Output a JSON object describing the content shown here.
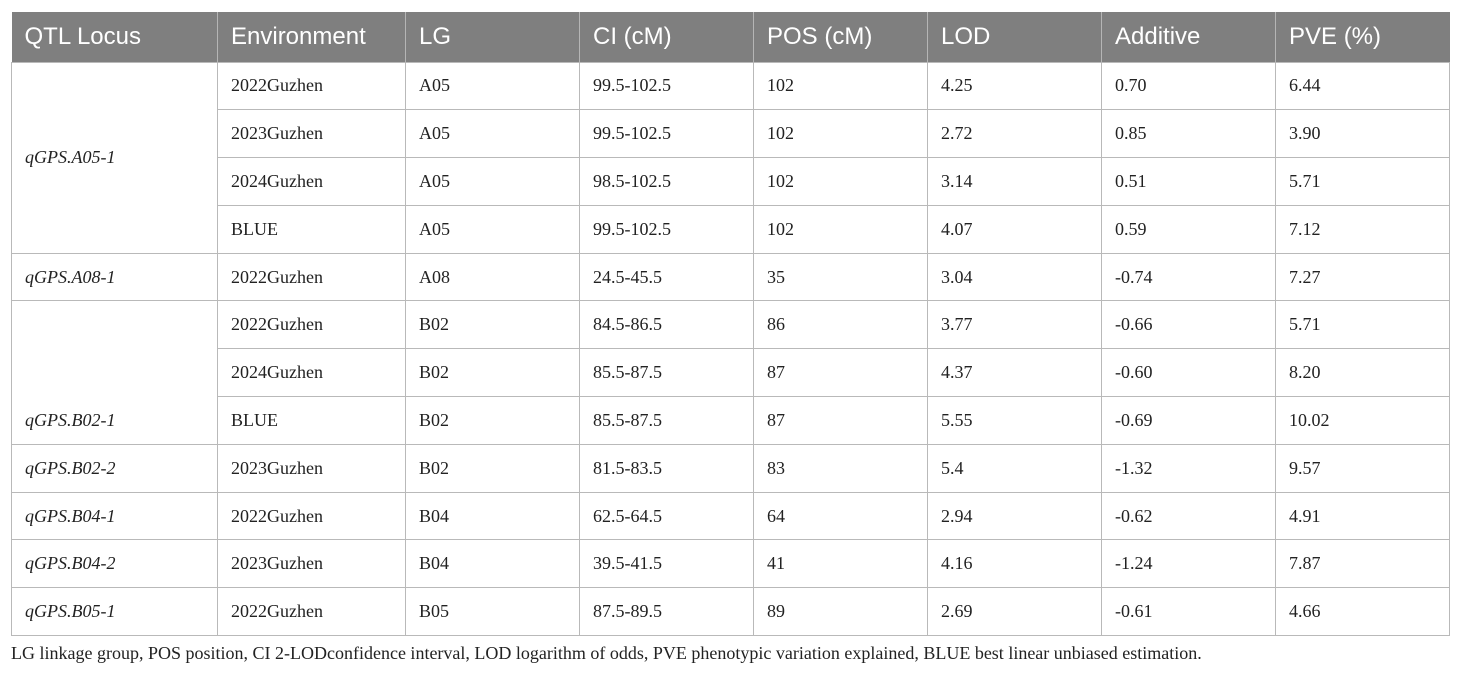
{
  "headers": [
    "QTL Locus",
    "Environment",
    "LG",
    "CI (cM)",
    "POS (cM)",
    "LOD",
    "Additive",
    "PVE (%)"
  ],
  "rows": [
    {
      "locus": "qGPS.A05-1",
      "env": "2022Guzhen",
      "lg": "A05",
      "ci": "99.5-102.5",
      "pos": "102",
      "lod": "4.25",
      "add": "0.70",
      "pve": "6.44"
    },
    {
      "env": "2023Guzhen",
      "lg": "A05",
      "ci": "99.5-102.5",
      "pos": "102",
      "lod": "2.72",
      "add": "0.85",
      "pve": "3.90"
    },
    {
      "env": "2024Guzhen",
      "lg": "A05",
      "ci": "98.5-102.5",
      "pos": "102",
      "lod": "3.14",
      "add": "0.51",
      "pve": "5.71"
    },
    {
      "env": "BLUE",
      "lg": "A05",
      "ci": "99.5-102.5",
      "pos": "102",
      "lod": "4.07",
      "add": "0.59",
      "pve": "7.12"
    },
    {
      "locus": "qGPS.A08-1",
      "env": "2022Guzhen",
      "lg": "A08",
      "ci": "24.5-45.5",
      "pos": "35",
      "lod": "3.04",
      "add": "-0.74",
      "pve": "7.27"
    },
    {
      "locus": "qGPS.B02-1",
      "env": "2022Guzhen",
      "lg": "B02",
      "ci": "84.5-86.5",
      "pos": "86",
      "lod": "3.77",
      "add": "-0.66",
      "pve": "5.71"
    },
    {
      "env": "2024Guzhen",
      "lg": "B02",
      "ci": "85.5-87.5",
      "pos": "87",
      "lod": "4.37",
      "add": "-0.60",
      "pve": "8.20"
    },
    {
      "env": "BLUE",
      "lg": "B02",
      "ci": "85.5-87.5",
      "pos": "87",
      "lod": "5.55",
      "add": "-0.69",
      "pve": "10.02"
    },
    {
      "locus": "qGPS.B02-2",
      "env": "2023Guzhen",
      "lg": "B02",
      "ci": "81.5-83.5",
      "pos": "83",
      "lod": "5.4",
      "add": "-1.32",
      "pve": "9.57"
    },
    {
      "locus": "qGPS.B04-1",
      "env": "2022Guzhen",
      "lg": "B04",
      "ci": "62.5-64.5",
      "pos": "64",
      "lod": "2.94",
      "add": "-0.62",
      "pve": "4.91"
    },
    {
      "locus": "qGPS.B04-2",
      "env": "2023Guzhen",
      "lg": "B04",
      "ci": "39.5-41.5",
      "pos": "41",
      "lod": "4.16",
      "add": "-1.24",
      "pve": "7.87"
    },
    {
      "locus": "qGPS.B05-1",
      "env": "2022Guzhen",
      "lg": "B05",
      "ci": "87.5-89.5",
      "pos": "89",
      "lod": "2.69",
      "add": "-0.61",
      "pve": "4.66"
    }
  ],
  "footnote": "LG linkage group, POS position, CI 2-LODconfidence interval, LOD logarithm of odds, PVE phenotypic variation explained, BLUE best linear unbiased estimation.",
  "colors": {
    "header_bg": "#7f7f7f",
    "header_text": "#ffffff",
    "border": "#b9b9b9"
  }
}
